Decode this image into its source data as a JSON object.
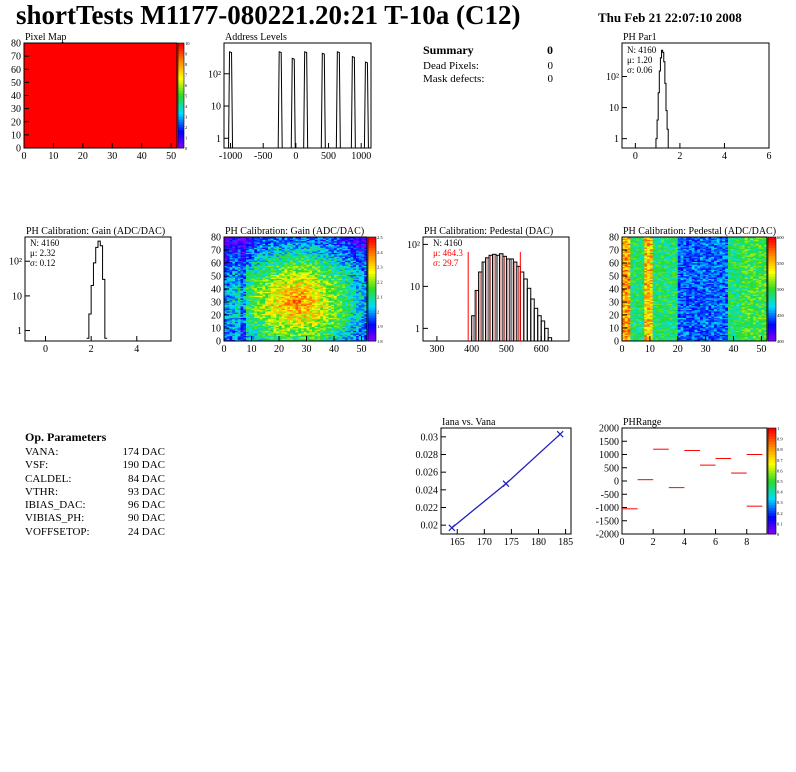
{
  "header": {
    "title": "shortTests M1177-080221.20:21 T-10a (C12)",
    "date": "Thu Feb 21 22:07:10 2008"
  },
  "summary": {
    "title": "Summary",
    "value": "0",
    "rows": [
      {
        "label": "Dead Pixels:",
        "value": "0"
      },
      {
        "label": "Mask defects:",
        "value": "0"
      }
    ]
  },
  "op_params": {
    "title": "Op. Parameters",
    "rows": [
      {
        "label": "VANA:",
        "value": "174 DAC"
      },
      {
        "label": "VSF:",
        "value": "190 DAC"
      },
      {
        "label": "CALDEL:",
        "value": "84 DAC"
      },
      {
        "label": "VTHR:",
        "value": "93 DAC"
      },
      {
        "label": "IBIAS_DAC:",
        "value": "96 DAC"
      },
      {
        "label": "VIBIAS_PH:",
        "value": "90 DAC"
      },
      {
        "label": "VOFFSETOP:",
        "value": "24 DAC"
      }
    ]
  },
  "colors": {
    "frame": "#000000",
    "red": "#ff0000",
    "blue": "#1f1fbf",
    "darkred": "#8b0000"
  },
  "chart_data": [
    {
      "id": "pixel-map",
      "type": "heatmap",
      "title": "Pixel Map",
      "xlim": [
        0,
        52
      ],
      "ylim": [
        0,
        80
      ],
      "xticks": [
        0,
        10,
        20,
        30,
        40,
        50
      ],
      "yticks": [
        0,
        10,
        20,
        30,
        40,
        50,
        60,
        70,
        80
      ],
      "fill_color": "#ff0000",
      "zticks": [
        "0",
        "1",
        "2",
        "3",
        "4",
        "5",
        "6",
        "7",
        "8",
        "9",
        "10"
      ]
    },
    {
      "id": "address-levels",
      "type": "line",
      "title": "Address Levels",
      "xlim": [
        -1100,
        1150
      ],
      "yscale": "log",
      "xticks": [
        -1000,
        -500,
        0,
        500,
        1000
      ],
      "yticks": [
        {
          "v": 1,
          "l": "1"
        },
        {
          "v": 10,
          "l": "10"
        },
        {
          "v": 100,
          "l": "10²"
        }
      ],
      "peaks": [
        {
          "x": -1000,
          "h": 480
        },
        {
          "x": -240,
          "h": 480
        },
        {
          "x": -40,
          "h": 300
        },
        {
          "x": 150,
          "h": 480
        },
        {
          "x": 420,
          "h": 430
        },
        {
          "x": 650,
          "h": 480
        },
        {
          "x": 880,
          "h": 340
        },
        {
          "x": 1080,
          "h": 230
        }
      ]
    },
    {
      "id": "ph-par1",
      "type": "line",
      "title": "PH Par1",
      "stats": [
        "N: 4160",
        "μ: 1.20",
        "σ: 0.06"
      ],
      "xlim": [
        -0.6,
        6
      ],
      "yscale": "log",
      "xticks": [
        0,
        2,
        4,
        6
      ],
      "yticks": [
        {
          "v": 1,
          "l": "1"
        },
        {
          "v": 10,
          "l": "10"
        },
        {
          "v": 100,
          "l": "10²"
        }
      ],
      "x": [
        0.9,
        0.95,
        1.0,
        1.05,
        1.1,
        1.15,
        1.2,
        1.25,
        1.3,
        1.35,
        1.4,
        1.45,
        1.5
      ],
      "y": [
        0.5,
        1,
        4,
        30,
        150,
        400,
        700,
        600,
        300,
        60,
        8,
        2,
        0.5
      ]
    },
    {
      "id": "gain-1d",
      "type": "line",
      "title": "PH Calibration: Gain (ADC/DAC)",
      "stats": [
        "N: 4160",
        "μ: 2.32",
        "σ: 0.12"
      ],
      "xlim": [
        -0.9,
        5.5
      ],
      "yscale": "log",
      "xticks": [
        0,
        2,
        4
      ],
      "yticks": [
        {
          "v": 1,
          "l": "1"
        },
        {
          "v": 10,
          "l": "10"
        },
        {
          "v": 100,
          "l": "10²"
        }
      ],
      "x": [
        1.85,
        1.95,
        2.05,
        2.15,
        2.25,
        2.35,
        2.45,
        2.55,
        2.65
      ],
      "y": [
        0.6,
        3,
        20,
        90,
        250,
        380,
        280,
        30,
        0.6
      ]
    },
    {
      "id": "gain-map",
      "type": "heatmap",
      "title": "PH Calibration: Gain (ADC/DAC)",
      "xlim": [
        0,
        52
      ],
      "ylim": [
        0,
        80
      ],
      "xticks": [
        0,
        10,
        20,
        30,
        40,
        50
      ],
      "yticks": [
        0,
        10,
        20,
        30,
        40,
        50,
        60,
        70,
        80
      ],
      "zticks": [
        "1.8",
        "1.9",
        "2",
        "2.1",
        "2.2",
        "2.3",
        "2.4",
        "2.5"
      ]
    },
    {
      "id": "pedestal-1d",
      "type": "bar",
      "title": "PH Calibration: Pedestal (DAC)",
      "stats": [
        "N: 4160",
        "μ: 464.3",
        "σ: 29.7"
      ],
      "xlim": [
        260,
        680
      ],
      "yscale": "log",
      "xticks": [
        300,
        400,
        500,
        600
      ],
      "yticks": [
        {
          "v": 1,
          "l": "1"
        },
        {
          "v": 10,
          "l": "10"
        },
        {
          "v": 100,
          "l": "10²"
        }
      ],
      "fit_lines": [
        390,
        540
      ],
      "x": [
        395,
        405,
        415,
        425,
        435,
        445,
        455,
        465,
        475,
        485,
        495,
        505,
        515,
        525,
        535,
        545,
        555,
        565,
        575,
        585,
        595,
        605,
        615,
        625
      ],
      "y": [
        0.5,
        2,
        8,
        22,
        38,
        48,
        55,
        58,
        55,
        60,
        52,
        45,
        45,
        38,
        30,
        22,
        15,
        9,
        5,
        3,
        2,
        1.5,
        1,
        0.6
      ]
    },
    {
      "id": "pedestal-map",
      "type": "heatmap",
      "title": "PH Calibration: Pedestal (ADC/DAC)",
      "xlim": [
        0,
        52
      ],
      "ylim": [
        0,
        80
      ],
      "xticks": [
        0,
        10,
        20,
        30,
        40,
        50
      ],
      "yticks": [
        0,
        10,
        20,
        30,
        40,
        50,
        60,
        70,
        80
      ],
      "zticks": [
        "400",
        "450",
        "500",
        "550",
        "600"
      ]
    },
    {
      "id": "iana-vana",
      "type": "line",
      "title": "Iana vs. Vana",
      "xlim": [
        162,
        186
      ],
      "ylim": [
        0.019,
        0.031
      ],
      "xticks": [
        165,
        170,
        175,
        180,
        185
      ],
      "yticks": [
        0.02,
        0.022,
        0.024,
        0.026,
        0.028,
        0.03
      ],
      "x": [
        164,
        174,
        184
      ],
      "y": [
        0.0197,
        0.0247,
        0.0303
      ]
    },
    {
      "id": "ph-range",
      "type": "scatter",
      "title": "PHRange",
      "xlim": [
        0,
        9.3
      ],
      "ylim": [
        -2000,
        2000
      ],
      "xticks": [
        0,
        2,
        4,
        6,
        8
      ],
      "yticks": [
        -2000,
        -1500,
        -1000,
        -500,
        0,
        500,
        1000,
        1500,
        2000
      ],
      "zticks": [
        "0",
        "0.1",
        "0.2",
        "0.3",
        "0.4",
        "0.5",
        "0.6",
        "0.7",
        "0.8",
        "0.9",
        "1"
      ],
      "x": [
        0.5,
        1.5,
        2.5,
        3.5,
        4.5,
        5.5,
        6.5,
        7.5,
        8.5
      ],
      "y": [
        -1050,
        50,
        1200,
        -250,
        1150,
        600,
        850,
        300,
        1000
      ],
      "extra": [
        {
          "x": 8.5,
          "y": -950
        }
      ]
    }
  ]
}
